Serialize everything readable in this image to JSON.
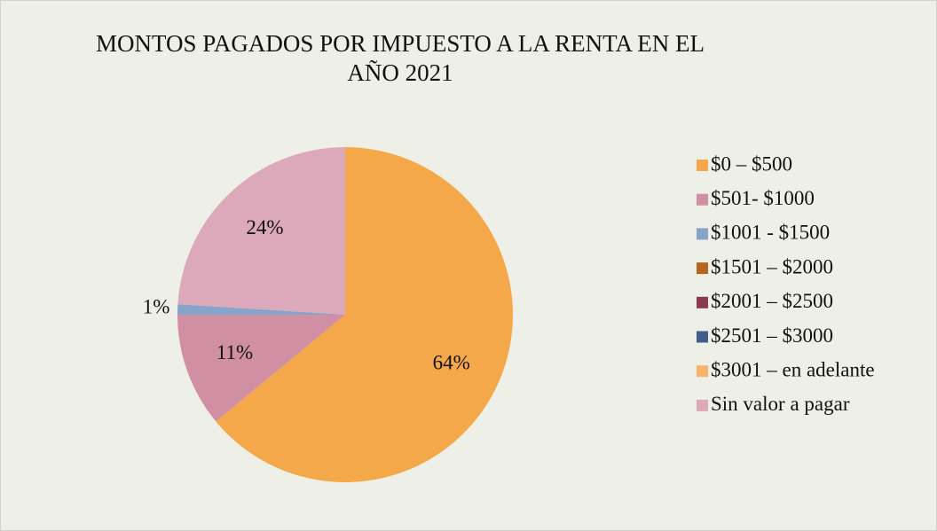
{
  "chart_data": {
    "type": "pie",
    "title": "MONTOS PAGADOS POR IMPUESTO A LA RENTA EN EL AÑO 2021",
    "categories": [
      "$0 – $500",
      "$501- $1000",
      "$1001 - $1500",
      "$1501 – $2000",
      "$2001 – $2500",
      "$2501 – $3000",
      "$3001 – en adelante",
      "Sin valor a pagar"
    ],
    "values": [
      64,
      11,
      1,
      0,
      0,
      0,
      0,
      24
    ],
    "value_labels": [
      "64%",
      "11%",
      "1%",
      null,
      null,
      null,
      null,
      "24%"
    ],
    "colors": [
      "#f4a84a",
      "#d08fa3",
      "#86a3c9",
      "#b5651d",
      "#8b3a52",
      "#3f5f8a",
      "#f7b26b",
      "#dba9b9"
    ],
    "legend": "right"
  }
}
